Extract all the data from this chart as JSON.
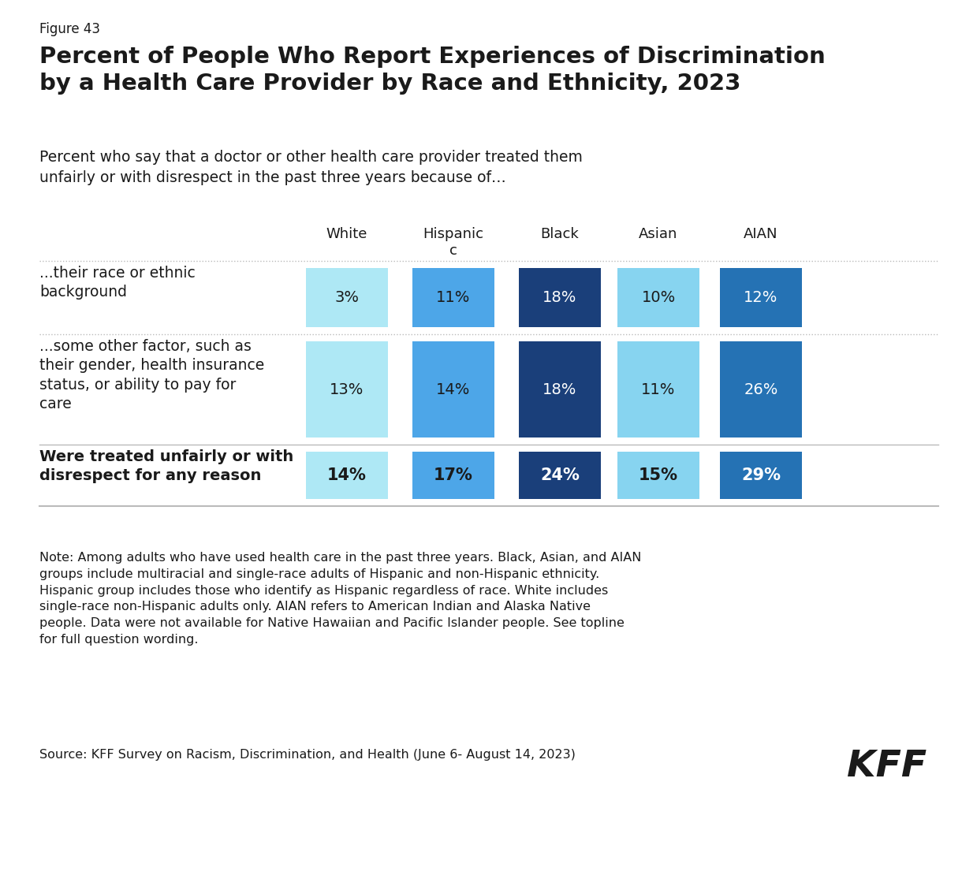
{
  "figure_label": "Figure 43",
  "title": "Percent of People Who Report Experiences of Discrimination\nby a Health Care Provider by Race and Ethnicity, 2023",
  "subtitle": "Percent who say that a doctor or other health care provider treated them\nunfairly or with disrespect in the past three years because of…",
  "columns": [
    "White",
    "Hispanic\nc",
    "Black",
    "Asian",
    "AIAN"
  ],
  "rows": [
    {
      "label": "...their race or ethnic\nbackground",
      "bold": false,
      "values": [
        3,
        11,
        18,
        10,
        12
      ]
    },
    {
      "label": "...some other factor, such as\ntheir gender, health insurance\nstatus, or ability to pay for\ncare",
      "bold": false,
      "values": [
        13,
        14,
        18,
        11,
        26
      ]
    },
    {
      "label": "Were treated unfairly or with\ndisrespect for any reason",
      "bold": true,
      "values": [
        14,
        17,
        24,
        15,
        29
      ]
    }
  ],
  "colors": [
    "#aee8f5",
    "#4da6e8",
    "#1a3f7a",
    "#87d4f0",
    "#2572b4"
  ],
  "text_colors": [
    "#1a1a1a",
    "#1a1a1a",
    "#ffffff",
    "#1a1a1a",
    "#ffffff"
  ],
  "note": "Note: Among adults who have used health care in the past three years. Black, Asian, and AIAN\ngroups include multiracial and single-race adults of Hispanic and non-Hispanic ethnicity.\nHispanic group includes those who identify as Hispanic regardless of race. White includes\nsingle-race non-Hispanic adults only. AIAN refers to American Indian and Alaska Native\npeople. Data were not available for Native Hawaiian and Pacific Islander people. See topline\nfor full question wording.",
  "source": "Source: KFF Survey on Racism, Discrimination, and Health (June 6- August 14, 2023)",
  "kff_logo": "KFF",
  "bg_color": "#ffffff",
  "text_color": "#1a1a1a",
  "divider_color": "#aaaaaa"
}
